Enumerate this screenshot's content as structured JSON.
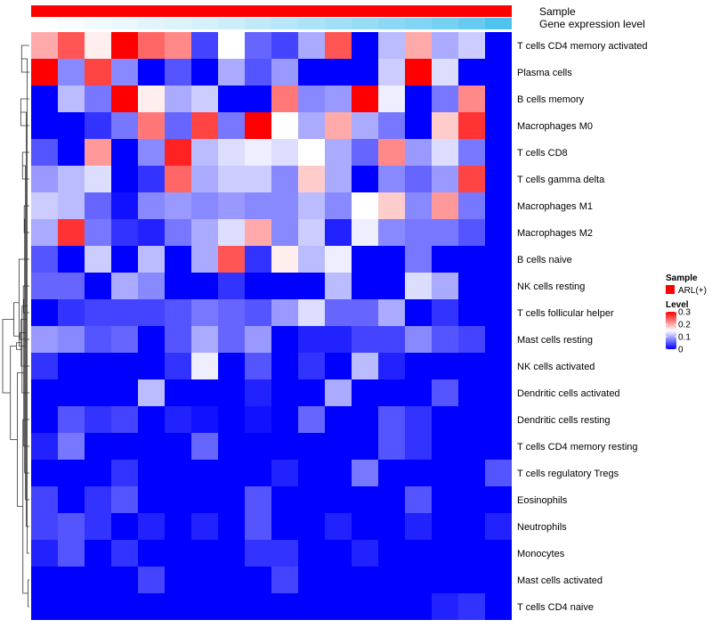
{
  "chart_data": {
    "type": "heatmap",
    "title": "",
    "annotation_tracks": [
      {
        "name": "Sample",
        "label": "Sample",
        "color": "#ff0000"
      },
      {
        "name": "Gene expression level",
        "label": "Gene expression level",
        "low_color": "#ffffff",
        "high_color": "#4ec3ee"
      }
    ],
    "rows": [
      "T cells CD4 memory activated",
      "Plasma cells",
      "B cells memory",
      "Macrophages M0",
      "T cells CD8",
      "T cells gamma delta",
      "Macrophages M1",
      "Macrophages M2",
      "B cells naive",
      "NK cells resting",
      "T cells follicular helper",
      "Mast cells resting",
      "NK cells activated",
      "Dendritic cells activated",
      "Dendritic cells resting",
      "T cells CD4 memory resting",
      "T cells regulatory  Tregs",
      "Eosinophils",
      "Neutrophils",
      "Monocytes",
      "Mast cells activated",
      "T cells CD4 naive"
    ],
    "n_columns": 18,
    "values": [
      [
        0.2,
        0.25,
        0.16,
        0.3,
        0.24,
        0.22,
        0.04,
        0.15,
        0.06,
        0.04,
        0.1,
        0.25,
        0.0,
        0.11,
        0.2,
        0.1,
        0.12,
        0.0
      ],
      [
        0.3,
        0.08,
        0.26,
        0.08,
        0.0,
        0.05,
        0.0,
        0.1,
        0.05,
        0.09,
        0.0,
        0.0,
        0.0,
        0.12,
        0.3,
        0.13,
        0.0,
        0.0
      ],
      [
        0.0,
        0.11,
        0.07,
        0.3,
        0.16,
        0.1,
        0.12,
        0.0,
        0.0,
        0.23,
        0.08,
        0.09,
        0.3,
        0.14,
        0.0,
        0.07,
        0.22,
        0.0
      ],
      [
        0.0,
        0.0,
        0.03,
        0.07,
        0.23,
        0.06,
        0.26,
        0.07,
        0.3,
        0.15,
        0.1,
        0.2,
        0.1,
        0.07,
        0.0,
        0.18,
        0.27,
        0.0
      ],
      [
        0.05,
        0.0,
        0.21,
        0.0,
        0.08,
        0.28,
        0.11,
        0.13,
        0.14,
        0.13,
        0.15,
        0.1,
        0.06,
        0.22,
        0.09,
        0.13,
        0.07,
        0.0
      ],
      [
        0.09,
        0.11,
        0.13,
        0.0,
        0.03,
        0.24,
        0.1,
        0.12,
        0.12,
        0.08,
        0.18,
        0.1,
        0.0,
        0.08,
        0.06,
        0.09,
        0.26,
        0.0
      ],
      [
        0.12,
        0.11,
        0.06,
        0.01,
        0.08,
        0.09,
        0.08,
        0.09,
        0.08,
        0.08,
        0.11,
        0.08,
        0.15,
        0.18,
        0.08,
        0.21,
        0.07,
        0.0
      ],
      [
        0.1,
        0.27,
        0.07,
        0.03,
        0.02,
        0.07,
        0.1,
        0.13,
        0.2,
        0.08,
        0.12,
        0.02,
        0.14,
        0.08,
        0.07,
        0.07,
        0.05,
        0.0
      ],
      [
        0.05,
        0.0,
        0.12,
        0.0,
        0.11,
        0.0,
        0.1,
        0.25,
        0.03,
        0.16,
        0.11,
        0.14,
        0.0,
        0.0,
        0.07,
        0.0,
        0.0,
        0.0
      ],
      [
        0.06,
        0.06,
        0.0,
        0.1,
        0.08,
        0.0,
        0.0,
        0.03,
        0.0,
        0.0,
        0.0,
        0.11,
        0.0,
        0.0,
        0.13,
        0.1,
        0.0,
        0.0
      ],
      [
        0.0,
        0.03,
        0.04,
        0.04,
        0.04,
        0.05,
        0.07,
        0.06,
        0.05,
        0.09,
        0.13,
        0.06,
        0.06,
        0.1,
        0.0,
        0.03,
        0.0,
        0.0
      ],
      [
        0.09,
        0.08,
        0.05,
        0.06,
        0.0,
        0.05,
        0.1,
        0.06,
        0.09,
        0.0,
        0.02,
        0.02,
        0.04,
        0.04,
        0.08,
        0.05,
        0.04,
        0.0
      ],
      [
        0.03,
        0.0,
        0.0,
        0.0,
        0.0,
        0.03,
        0.14,
        0.0,
        0.05,
        0.0,
        0.03,
        0.0,
        0.11,
        0.02,
        0.0,
        0.0,
        0.0,
        0.0
      ],
      [
        0.0,
        0.0,
        0.0,
        0.0,
        0.11,
        0.0,
        0.0,
        0.0,
        0.02,
        0.0,
        0.0,
        0.1,
        0.0,
        0.0,
        0.0,
        0.05,
        0.0,
        0.0
      ],
      [
        0.0,
        0.05,
        0.03,
        0.04,
        0.0,
        0.02,
        0.01,
        0.0,
        0.01,
        0.0,
        0.06,
        0.0,
        0.0,
        0.05,
        0.03,
        0.0,
        0.0,
        0.0
      ],
      [
        0.02,
        0.07,
        0.0,
        0.0,
        0.0,
        0.0,
        0.06,
        0.0,
        0.0,
        0.0,
        0.0,
        0.0,
        0.0,
        0.05,
        0.03,
        0.0,
        0.0,
        0.0
      ],
      [
        0.0,
        0.0,
        0.0,
        0.03,
        0.0,
        0.0,
        0.0,
        0.0,
        0.0,
        0.02,
        0.0,
        0.0,
        0.07,
        0.0,
        0.0,
        0.0,
        0.0,
        0.05
      ],
      [
        0.04,
        0.0,
        0.03,
        0.05,
        0.0,
        0.0,
        0.0,
        0.0,
        0.05,
        0.0,
        0.0,
        0.0,
        0.0,
        0.0,
        0.05,
        0.0,
        0.0,
        0.0
      ],
      [
        0.04,
        0.05,
        0.03,
        0.0,
        0.02,
        0.0,
        0.02,
        0.0,
        0.05,
        0.0,
        0.0,
        0.02,
        0.0,
        0.0,
        0.02,
        0.0,
        0.0,
        0.02
      ],
      [
        0.02,
        0.05,
        0.0,
        0.03,
        0.0,
        0.0,
        0.0,
        0.0,
        0.03,
        0.03,
        0.0,
        0.0,
        0.02,
        0.0,
        0.0,
        0.0,
        0.0,
        0.0
      ],
      [
        0.0,
        0.0,
        0.0,
        0.0,
        0.04,
        0.0,
        0.0,
        0.0,
        0.0,
        0.04,
        0.0,
        0.0,
        0.0,
        0.0,
        0.0,
        0.0,
        0.0,
        0.0
      ],
      [
        0.0,
        0.0,
        0.0,
        0.0,
        0.0,
        0.0,
        0.0,
        0.0,
        0.0,
        0.0,
        0.0,
        0.0,
        0.0,
        0.0,
        0.0,
        0.02,
        0.03,
        0.0
      ]
    ],
    "gene_expression_level_track": [
      0.0,
      0.04,
      0.08,
      0.12,
      0.16,
      0.2,
      0.24,
      0.29,
      0.35,
      0.41,
      0.47,
      0.53,
      0.59,
      0.65,
      0.71,
      0.78,
      0.86,
      1.0
    ],
    "color_scale": {
      "min": 0,
      "max": 0.3,
      "low_color": "#0000ff",
      "mid_color": "#ffffff",
      "high_color": "#ff0000",
      "mid_value": 0.15
    },
    "legend": {
      "position": "right",
      "sample_title": "Sample",
      "sample_entry": "ARL(+)",
      "level_title": "Level",
      "level_ticks": [
        {
          "value": 0.3,
          "label": "0.3"
        },
        {
          "value": 0.2,
          "label": "0.2"
        },
        {
          "value": 0.1,
          "label": "0.1"
        },
        {
          "value": 0,
          "label": "0"
        }
      ]
    },
    "dendrogram": {
      "side": "left",
      "merges": [
        [
          0,
          1
        ],
        [
          2,
          3
        ],
        [
          4,
          5
        ],
        [
          6,
          7
        ],
        [
          9,
          10
        ],
        [
          20,
          21
        ],
        [
          19,
          22
        ],
        [
          18,
          23
        ],
        [
          17,
          24
        ],
        [
          16,
          25
        ],
        [
          15,
          26
        ],
        [
          14,
          27
        ],
        [
          13,
          28
        ],
        [
          12,
          29
        ],
        [
          11,
          30
        ],
        [
          8,
          31
        ],
        [
          32,
          33
        ],
        [
          34,
          35
        ],
        [
          36,
          37
        ],
        [
          38,
          39
        ],
        [
          40,
          41
        ]
      ],
      "heights": [
        18,
        20,
        16,
        12,
        14,
        3,
        5,
        7,
        9,
        11,
        13,
        15,
        17,
        19,
        22,
        24,
        28,
        30,
        36,
        44,
        62
      ]
    }
  }
}
